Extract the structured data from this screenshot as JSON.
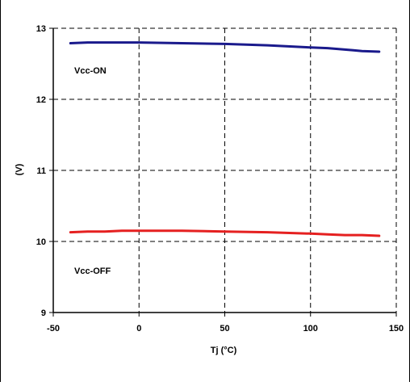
{
  "chart_data": {
    "type": "line",
    "title": "",
    "xlabel": "Tj (°C)",
    "ylabel": "(V)",
    "xlim": [
      -50,
      150
    ],
    "ylim": [
      9,
      13
    ],
    "xticks": [
      -50,
      0,
      50,
      100,
      150
    ],
    "yticks": [
      9,
      10,
      11,
      12,
      13
    ],
    "xtick_labels": [
      "-50",
      "0",
      "50",
      "100",
      "150"
    ],
    "ytick_labels": [
      "9",
      "10",
      "11",
      "12",
      "13"
    ],
    "grid": true,
    "series": [
      {
        "name": "Vcc-ON",
        "color": "#1a1a8c",
        "x": [
          -40,
          -30,
          -20,
          -10,
          0,
          25,
          50,
          75,
          100,
          110,
          120,
          125,
          130,
          140
        ],
        "y": [
          12.79,
          12.8,
          12.8,
          12.8,
          12.8,
          12.79,
          12.78,
          12.76,
          12.73,
          12.72,
          12.7,
          12.69,
          12.68,
          12.67
        ]
      },
      {
        "name": "Vcc-OFF",
        "color": "#e52020",
        "x": [
          -40,
          -30,
          -20,
          -10,
          0,
          25,
          50,
          75,
          100,
          110,
          120,
          125,
          130,
          140
        ],
        "y": [
          10.13,
          10.14,
          10.14,
          10.15,
          10.15,
          10.15,
          10.14,
          10.13,
          10.11,
          10.1,
          10.09,
          10.09,
          10.09,
          10.08
        ]
      }
    ]
  }
}
